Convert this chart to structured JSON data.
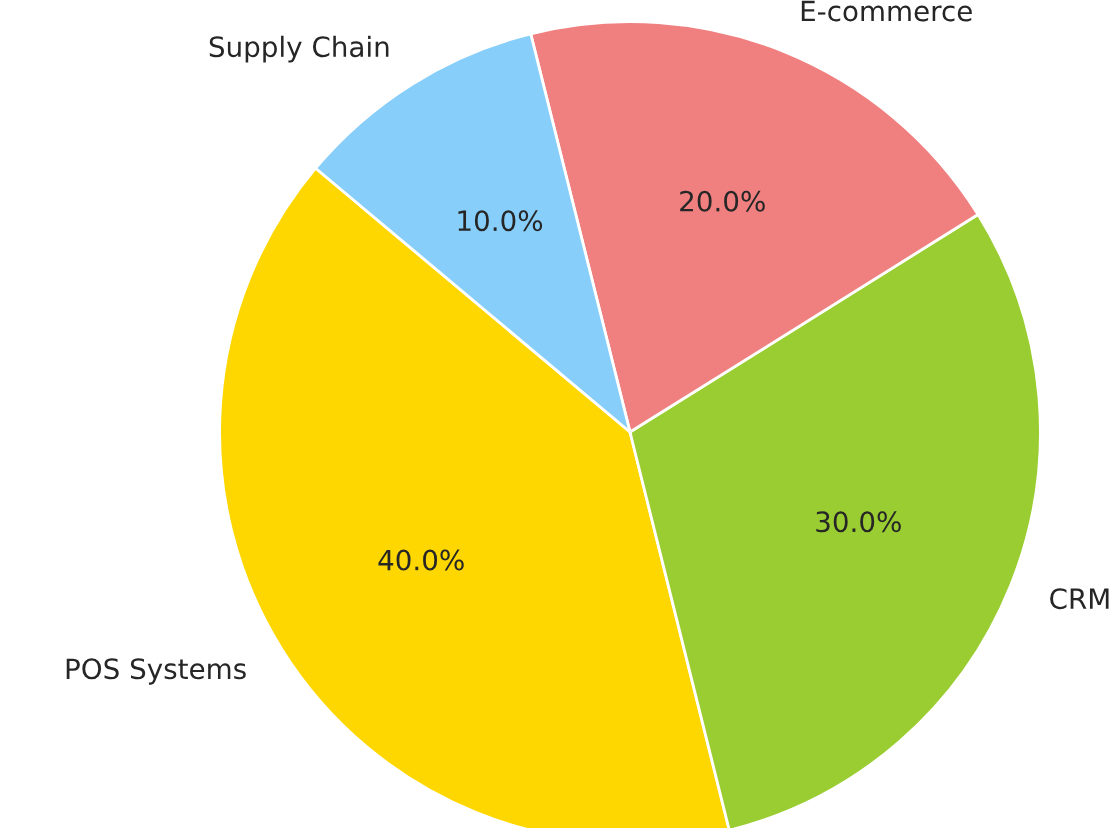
{
  "chart_data": {
    "type": "pie",
    "categories": [
      "POS Systems",
      "CRM",
      "E-commerce",
      "Supply Chain"
    ],
    "values": [
      40,
      30,
      20,
      10
    ],
    "value_labels": [
      "40.0%",
      "30.0%",
      "20.0%",
      "10.0%"
    ],
    "colors": [
      "#ffd700",
      "#9acd32",
      "#f08080",
      "#87cefa"
    ],
    "legend": false
  }
}
